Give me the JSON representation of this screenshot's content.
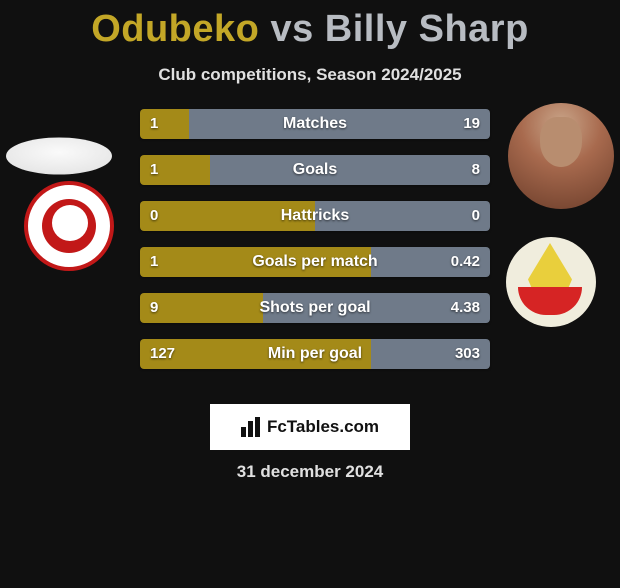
{
  "title": {
    "p1": "Odubeko",
    "vs": "vs",
    "p2": "Billy Sharp"
  },
  "subtitle": "Club competitions, Season 2024/2025",
  "colors": {
    "left": "#a48a18",
    "right": "#6f7a89"
  },
  "stats": [
    {
      "label": "Matches",
      "l": "1",
      "r": "19",
      "lw": 14,
      "rw": 86
    },
    {
      "label": "Goals",
      "l": "1",
      "r": "8",
      "lw": 20,
      "rw": 80
    },
    {
      "label": "Hattricks",
      "l": "0",
      "r": "0",
      "lw": 50,
      "rw": 50
    },
    {
      "label": "Goals per match",
      "l": "1",
      "r": "0.42",
      "lw": 66,
      "rw": 34
    },
    {
      "label": "Shots per goal",
      "l": "9",
      "r": "4.38",
      "lw": 35,
      "rw": 65
    },
    {
      "label": "Min per goal",
      "l": "127",
      "r": "303",
      "lw": 66,
      "rw": 34
    }
  ],
  "brand": "FcTables.com",
  "date": "31 december 2024"
}
